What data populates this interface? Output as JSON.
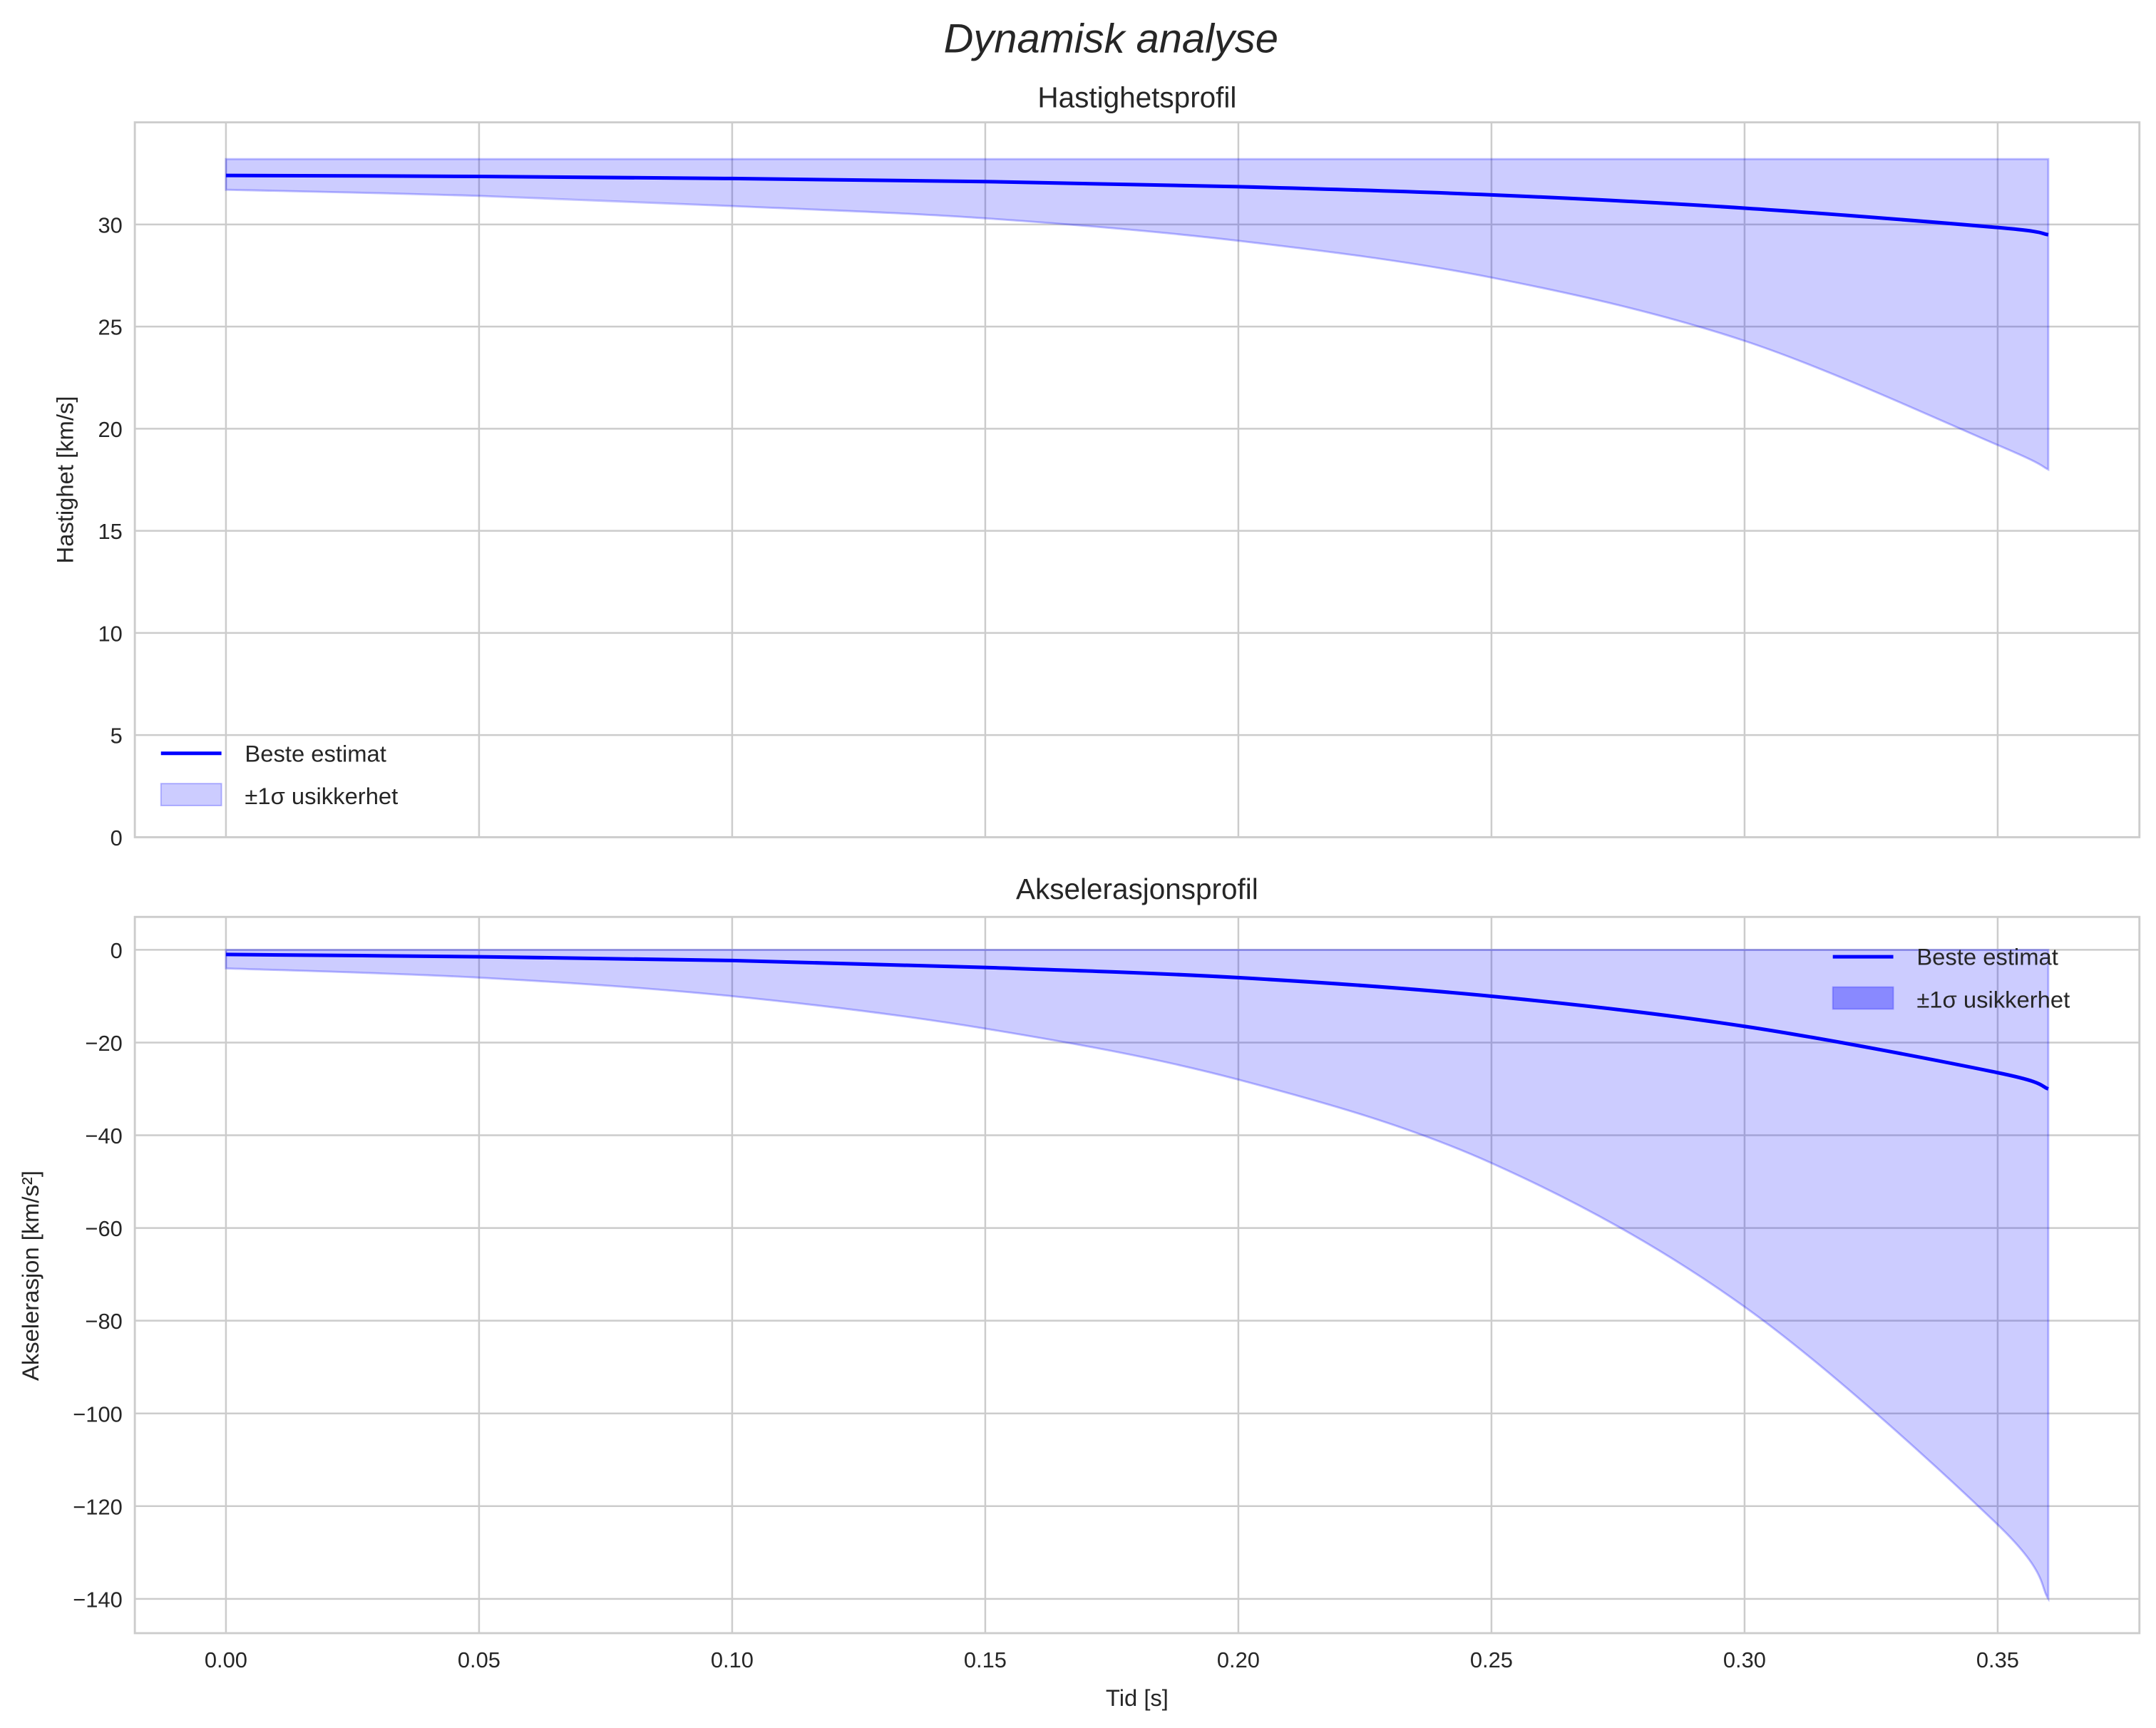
{
  "chart_data": [
    {
      "type": "line",
      "suptitle": "Dynamisk analyse",
      "title": "Hastighetsprofil",
      "xlabel": "",
      "ylabel": "Hastighet [km/s]",
      "xlim": [
        -0.018,
        0.378
      ],
      "ylim": [
        0,
        35
      ],
      "xticks": [
        0.0,
        0.05,
        0.1,
        0.15,
        0.2,
        0.25,
        0.3,
        0.35
      ],
      "xtick_labels": [],
      "yticks": [
        0,
        5,
        10,
        15,
        20,
        25,
        30
      ],
      "ytick_labels": [
        "0",
        "5",
        "10",
        "15",
        "20",
        "25",
        "30"
      ],
      "grid": true,
      "legend_position": "lower-left",
      "legend": [
        "Beste estimat",
        "±1σ usikkerhet"
      ],
      "x": [
        0,
        0.05,
        0.1,
        0.15,
        0.2,
        0.25,
        0.3,
        0.35,
        0.36
      ],
      "series": [
        {
          "name": "Beste estimat",
          "values": [
            32.4,
            32.35,
            32.25,
            32.1,
            31.85,
            31.45,
            30.8,
            29.85,
            29.5
          ],
          "color": "#0000ff"
        }
      ],
      "band": {
        "name": "±1σ usikkerhet",
        "lower": [
          31.7,
          31.4,
          30.9,
          30.3,
          29.2,
          27.4,
          24.3,
          19.2,
          18.0
        ],
        "upper": [
          33.2,
          33.2,
          33.2,
          33.2,
          33.2,
          33.2,
          33.2,
          33.2,
          33.2
        ],
        "color": "#0000ff",
        "alpha": 0.2
      }
    },
    {
      "type": "line",
      "title": "Akselerasjonsprofil",
      "xlabel": "Tid [s]",
      "ylabel": "Akselerasjon [km/s²]",
      "xlim": [
        -0.018,
        0.378
      ],
      "ylim": [
        -147.4,
        7.1
      ],
      "xticks": [
        0.0,
        0.05,
        0.1,
        0.15,
        0.2,
        0.25,
        0.3,
        0.35
      ],
      "xtick_labels": [
        "0.00",
        "0.05",
        "0.10",
        "0.15",
        "0.20",
        "0.25",
        "0.30",
        "0.35"
      ],
      "yticks": [
        0,
        -20,
        -40,
        -60,
        -80,
        -100,
        -120,
        -140
      ],
      "ytick_labels": [
        "0",
        "−20",
        "−40",
        "−60",
        "−80",
        "−100",
        "−120",
        "−140"
      ],
      "grid": true,
      "legend_position": "upper-right",
      "legend": [
        "Beste estimat",
        "±1σ usikkerhet"
      ],
      "x": [
        0,
        0.05,
        0.1,
        0.15,
        0.2,
        0.25,
        0.3,
        0.35,
        0.36
      ],
      "series": [
        {
          "name": "Beste estimat",
          "values": [
            -1,
            -1.5,
            -2.3,
            -3.8,
            -6,
            -10,
            -16.5,
            -26.5,
            -30
          ],
          "color": "#0000ff"
        }
      ],
      "band": {
        "name": "±1σ usikkerhet",
        "lower": [
          -4,
          -6,
          -10,
          -17,
          -28,
          -46,
          -77,
          -124,
          -140
        ],
        "upper": [
          0,
          0,
          0,
          0,
          0,
          0,
          0,
          0,
          0
        ],
        "color": "#0000ff",
        "alpha": 0.2
      }
    }
  ]
}
